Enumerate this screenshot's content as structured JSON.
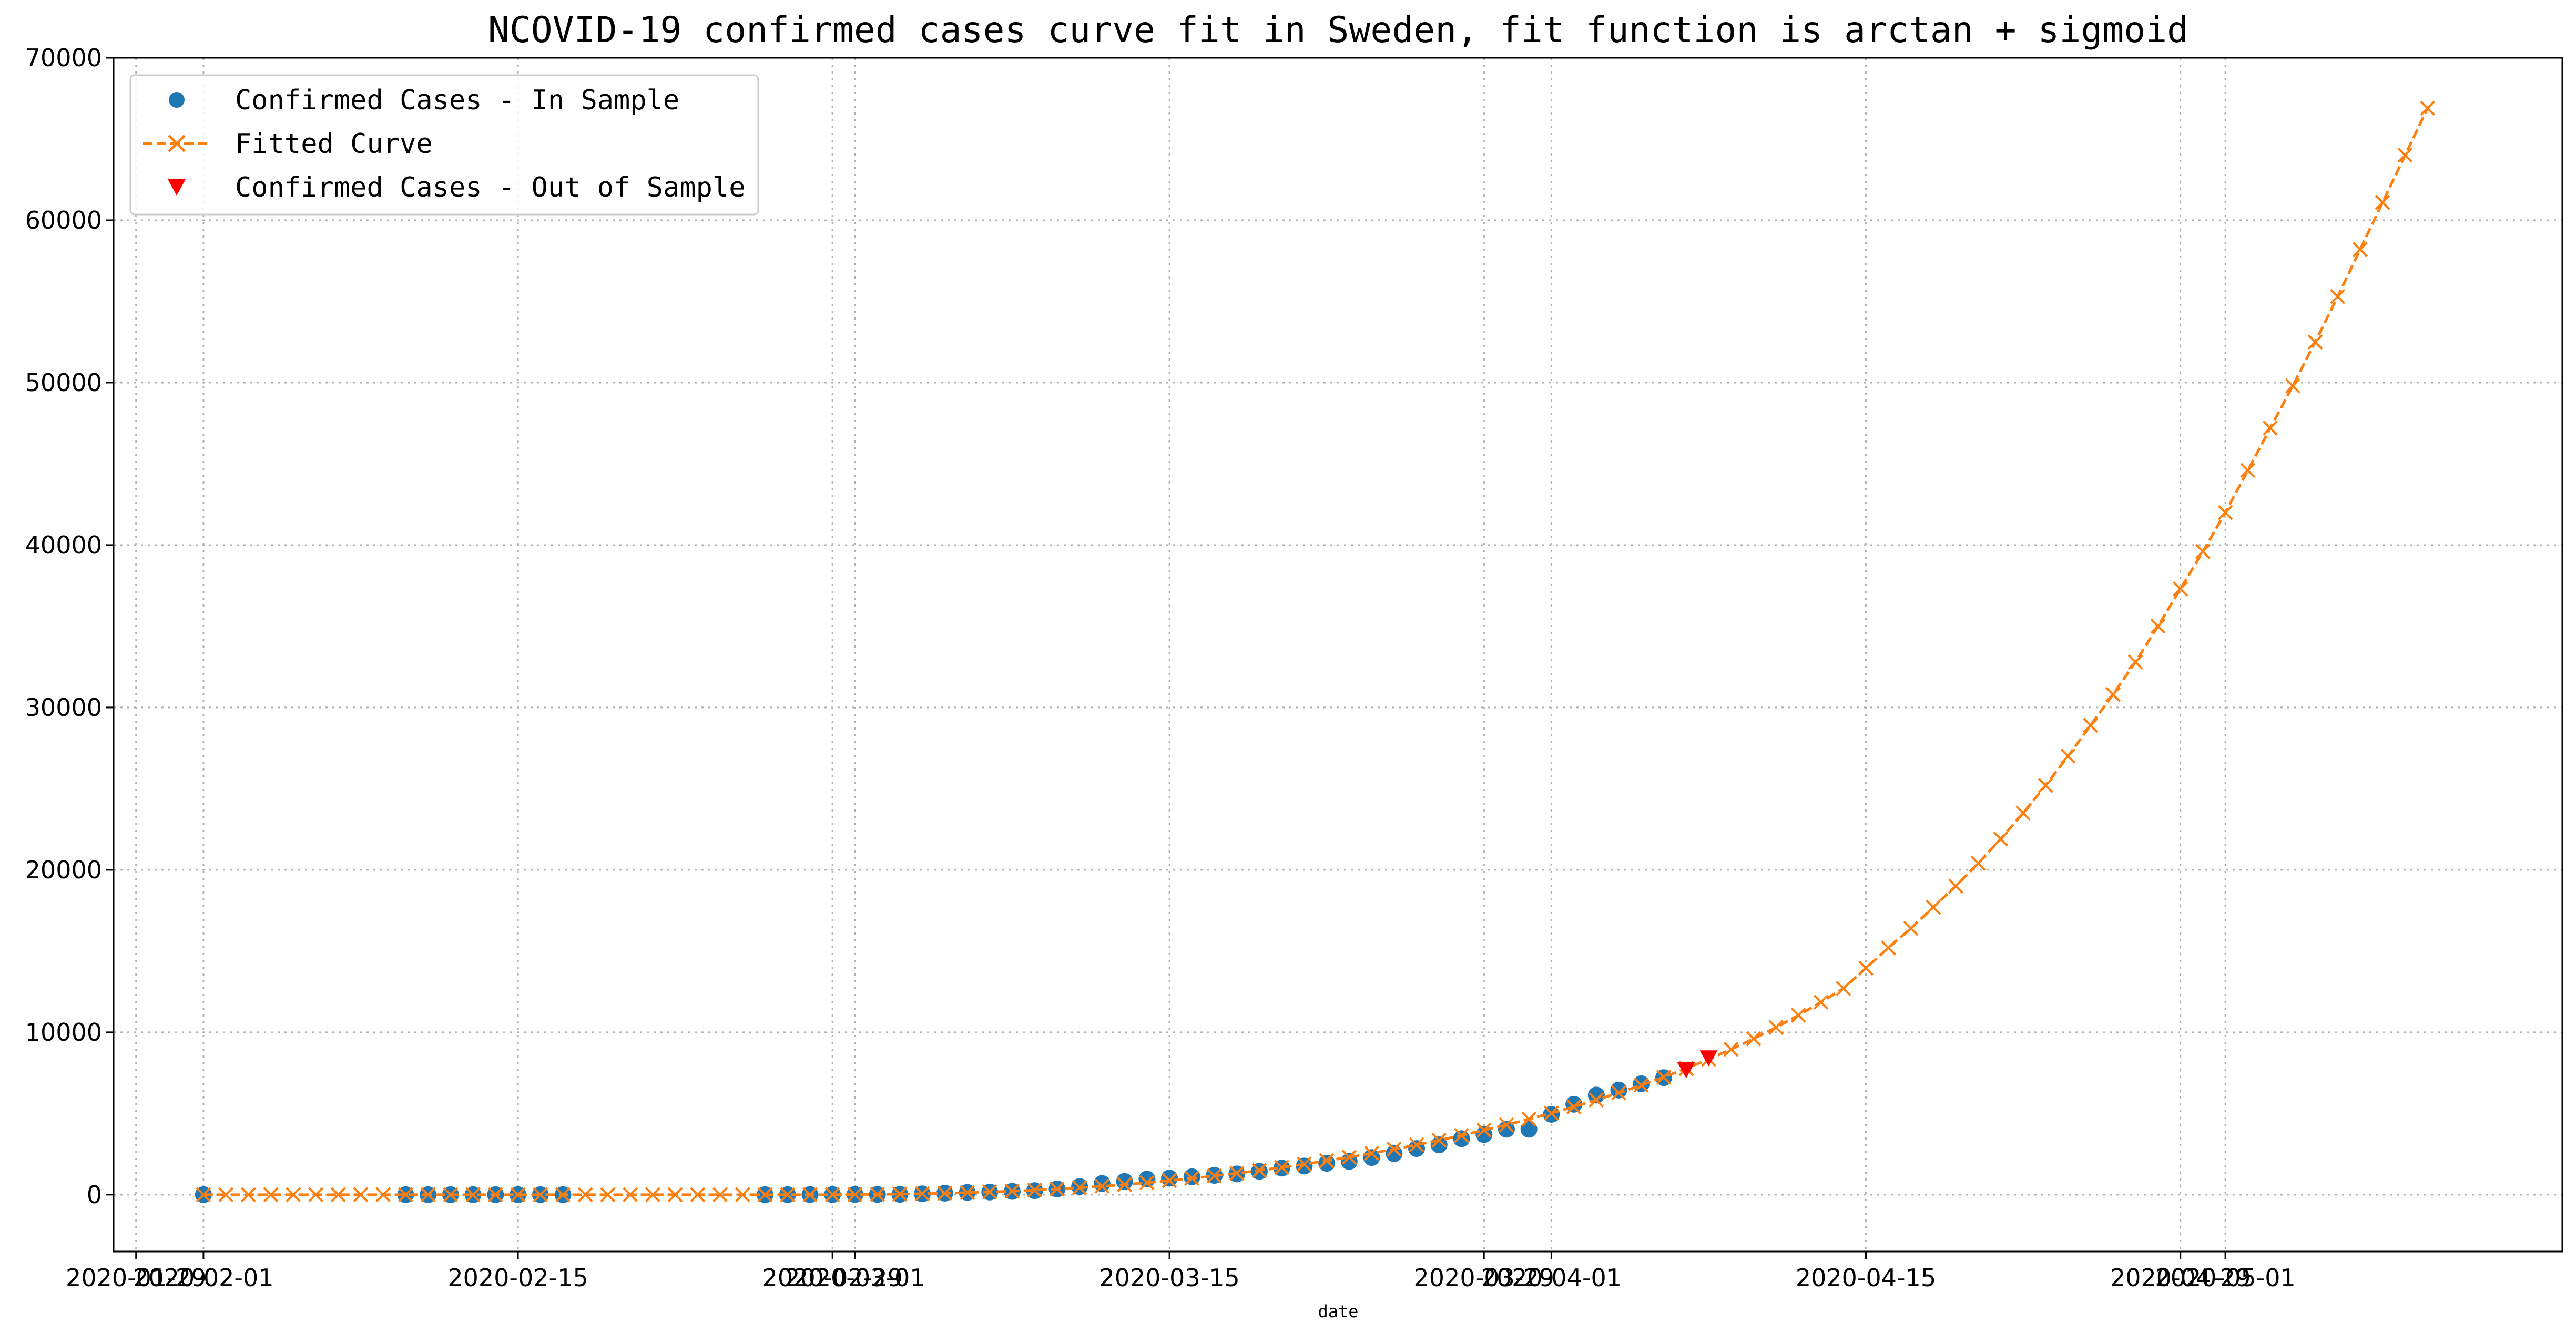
{
  "chart_data": {
    "type": "line",
    "title": "NCOVID-19 confirmed cases curve fit in Sweden, fit function is arctan + sigmoid",
    "xlabel": "date",
    "ylabel": "",
    "ylim": [
      -3500,
      70000
    ],
    "xlim": [
      "2020-01-28",
      "2020-05-16"
    ],
    "grid": true,
    "grid_style": "dotted",
    "legend_position": "top-left",
    "x_tick_labels": [
      "2020-01-29",
      "2020-02-01",
      "2020-02-15",
      "2020-02-29",
      "2020-03-01",
      "2020-03-15",
      "2020-03-29",
      "2020-04-01",
      "2020-04-15",
      "2020-04-29",
      "2020-05-01"
    ],
    "y_tick_labels": [
      "0",
      "10000",
      "20000",
      "30000",
      "40000",
      "50000",
      "60000",
      "70000"
    ],
    "colors": {
      "in_sample": "#1f77b4",
      "fitted": "#ff7f0e",
      "out_of_sample": "#ff0000",
      "grid": "#b0b0b0"
    },
    "series": [
      {
        "name": "Confirmed Cases - In Sample",
        "marker": "circle",
        "color": "#1f77b4",
        "points": [
          [
            "2020-02-01",
            1
          ],
          [
            "2020-02-10",
            1
          ],
          [
            "2020-02-11",
            1
          ],
          [
            "2020-02-12",
            1
          ],
          [
            "2020-02-13",
            1
          ],
          [
            "2020-02-14",
            1
          ],
          [
            "2020-02-15",
            1
          ],
          [
            "2020-02-16",
            1
          ],
          [
            "2020-02-17",
            1
          ],
          [
            "2020-02-26",
            1
          ],
          [
            "2020-02-27",
            2
          ],
          [
            "2020-02-28",
            7
          ],
          [
            "2020-02-29",
            7
          ],
          [
            "2020-03-01",
            14
          ],
          [
            "2020-03-02",
            15
          ],
          [
            "2020-03-03",
            21
          ],
          [
            "2020-03-04",
            52
          ],
          [
            "2020-03-05",
            94
          ],
          [
            "2020-03-06",
            137
          ],
          [
            "2020-03-07",
            161
          ],
          [
            "2020-03-08",
            203
          ],
          [
            "2020-03-09",
            248
          ],
          [
            "2020-03-10",
            355
          ],
          [
            "2020-03-11",
            500
          ],
          [
            "2020-03-12",
            687
          ],
          [
            "2020-03-13",
            814
          ],
          [
            "2020-03-14",
            961
          ],
          [
            "2020-03-15",
            1022
          ],
          [
            "2020-03-16",
            1103
          ],
          [
            "2020-03-17",
            1190
          ],
          [
            "2020-03-18",
            1279
          ],
          [
            "2020-03-19",
            1439
          ],
          [
            "2020-03-20",
            1639
          ],
          [
            "2020-03-21",
            1763
          ],
          [
            "2020-03-22",
            1934
          ],
          [
            "2020-03-23",
            2046
          ],
          [
            "2020-03-24",
            2286
          ],
          [
            "2020-03-25",
            2526
          ],
          [
            "2020-03-26",
            2840
          ],
          [
            "2020-03-27",
            3069
          ],
          [
            "2020-03-28",
            3447
          ],
          [
            "2020-03-29",
            3700
          ],
          [
            "2020-03-30",
            4028
          ],
          [
            "2020-03-31",
            4028
          ],
          [
            "2020-04-01",
            4947
          ],
          [
            "2020-04-02",
            5568
          ],
          [
            "2020-04-03",
            6131
          ],
          [
            "2020-04-04",
            6443
          ],
          [
            "2020-04-05",
            6830
          ],
          [
            "2020-04-06",
            7206
          ]
        ]
      },
      {
        "name": "Fitted Curve",
        "marker": "x",
        "line_style": "dashed",
        "color": "#ff7f0e",
        "points": [
          [
            "2020-02-01",
            0
          ],
          [
            "2020-02-02",
            0
          ],
          [
            "2020-02-03",
            0
          ],
          [
            "2020-02-04",
            0
          ],
          [
            "2020-02-05",
            0
          ],
          [
            "2020-02-06",
            0
          ],
          [
            "2020-02-07",
            0
          ],
          [
            "2020-02-08",
            0
          ],
          [
            "2020-02-09",
            0
          ],
          [
            "2020-02-10",
            0
          ],
          [
            "2020-02-11",
            0
          ],
          [
            "2020-02-12",
            0
          ],
          [
            "2020-02-13",
            0
          ],
          [
            "2020-02-14",
            0
          ],
          [
            "2020-02-15",
            0
          ],
          [
            "2020-02-16",
            0
          ],
          [
            "2020-02-17",
            0
          ],
          [
            "2020-02-18",
            0
          ],
          [
            "2020-02-19",
            0
          ],
          [
            "2020-02-20",
            0
          ],
          [
            "2020-02-21",
            0
          ],
          [
            "2020-02-22",
            0
          ],
          [
            "2020-02-23",
            0
          ],
          [
            "2020-02-24",
            0
          ],
          [
            "2020-02-25",
            0
          ],
          [
            "2020-02-26",
            0
          ],
          [
            "2020-02-27",
            0
          ],
          [
            "2020-02-28",
            0
          ],
          [
            "2020-02-29",
            0
          ],
          [
            "2020-03-01",
            10
          ],
          [
            "2020-03-02",
            20
          ],
          [
            "2020-03-03",
            40
          ],
          [
            "2020-03-04",
            60
          ],
          [
            "2020-03-05",
            90
          ],
          [
            "2020-03-06",
            130
          ],
          [
            "2020-03-07",
            170
          ],
          [
            "2020-03-08",
            220
          ],
          [
            "2020-03-09",
            280
          ],
          [
            "2020-03-10",
            350
          ],
          [
            "2020-03-11",
            430
          ],
          [
            "2020-03-12",
            520
          ],
          [
            "2020-03-13",
            620
          ],
          [
            "2020-03-14",
            740
          ],
          [
            "2020-03-15",
            870
          ],
          [
            "2020-03-16",
            1010
          ],
          [
            "2020-03-17",
            1160
          ],
          [
            "2020-03-18",
            1320
          ],
          [
            "2020-03-19",
            1490
          ],
          [
            "2020-03-20",
            1680
          ],
          [
            "2020-03-21",
            1880
          ],
          [
            "2020-03-22",
            2090
          ],
          [
            "2020-03-23",
            2310
          ],
          [
            "2020-03-24",
            2550
          ],
          [
            "2020-03-25",
            2800
          ],
          [
            "2020-03-26",
            3070
          ],
          [
            "2020-03-27",
            3350
          ],
          [
            "2020-03-28",
            3650
          ],
          [
            "2020-03-29",
            3970
          ],
          [
            "2020-03-30",
            4300
          ],
          [
            "2020-03-31",
            4650
          ],
          [
            "2020-04-01",
            5020
          ],
          [
            "2020-04-02",
            5410
          ],
          [
            "2020-04-03",
            5830
          ],
          [
            "2020-04-04",
            6270
          ],
          [
            "2020-04-05",
            6740
          ],
          [
            "2020-04-06",
            7240
          ],
          [
            "2020-04-07",
            7770
          ],
          [
            "2020-04-08",
            8340
          ],
          [
            "2020-04-09",
            8950
          ],
          [
            "2020-04-10",
            9600
          ],
          [
            "2020-04-11",
            10300
          ],
          [
            "2020-04-12",
            11050
          ],
          [
            "2020-04-13",
            11850
          ],
          [
            "2020-04-14",
            12700
          ],
          [
            "2020-04-15",
            13950
          ],
          [
            "2020-04-16",
            15200
          ],
          [
            "2020-04-17",
            16400
          ],
          [
            "2020-04-18",
            17700
          ],
          [
            "2020-04-19",
            19000
          ],
          [
            "2020-04-20",
            20400
          ],
          [
            "2020-04-21",
            21900
          ],
          [
            "2020-04-22",
            23500
          ],
          [
            "2020-04-23",
            25200
          ],
          [
            "2020-04-24",
            27000
          ],
          [
            "2020-04-25",
            28900
          ],
          [
            "2020-04-26",
            30800
          ],
          [
            "2020-04-27",
            32800
          ],
          [
            "2020-04-28",
            35000
          ],
          [
            "2020-04-29",
            37300
          ],
          [
            "2020-04-30",
            39600
          ],
          [
            "2020-05-01",
            42000
          ],
          [
            "2020-05-02",
            44600
          ],
          [
            "2020-05-03",
            47200
          ],
          [
            "2020-05-04",
            49800
          ],
          [
            "2020-05-05",
            52500
          ],
          [
            "2020-05-06",
            55300
          ],
          [
            "2020-05-07",
            58200
          ],
          [
            "2020-05-08",
            61100
          ],
          [
            "2020-05-09",
            64000
          ],
          [
            "2020-05-10",
            66900
          ]
        ]
      },
      {
        "name": "Confirmed Cases - Out of Sample",
        "marker": "triangle-down",
        "color": "#ff0000",
        "points": [
          [
            "2020-04-07",
            7693
          ],
          [
            "2020-04-08",
            8419
          ]
        ]
      }
    ]
  }
}
